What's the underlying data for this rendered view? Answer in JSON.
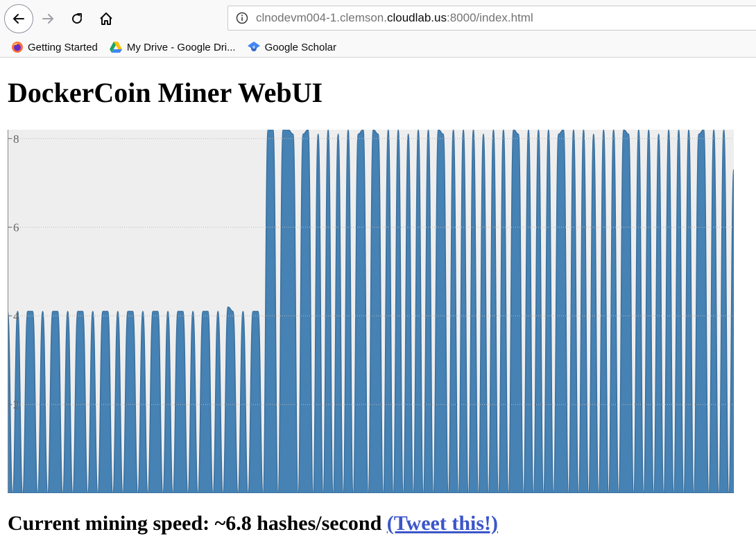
{
  "browser": {
    "url_prefix": "clnodevm004-1.clemson.",
    "url_domain": "cloudlab.us",
    "url_suffix": ":8000/index.html",
    "bookmarks": [
      {
        "label": "Getting Started",
        "icon": "firefox-icon"
      },
      {
        "label": "My Drive - Google Dri...",
        "icon": "google-drive-icon"
      },
      {
        "label": "Google Scholar",
        "icon": "google-scholar-icon"
      }
    ]
  },
  "page": {
    "title": "DockerCoin Miner WebUI",
    "speed_text": "Current mining speed: ~6.8 hashes/second",
    "tweet_link": "(Tweet this!)"
  },
  "chart_data": {
    "type": "area",
    "title": "",
    "xlabel": "",
    "ylabel": "",
    "y_ticks": [
      "2",
      "4",
      "6",
      "8"
    ],
    "ylim": [
      0,
      8.2
    ],
    "grid": true,
    "colors": {
      "fill": "#4682b4",
      "background": "#eeeeee",
      "grid": "#bbbbbb"
    },
    "series": [
      {
        "x": [
          0,
          1,
          2,
          3,
          4,
          5,
          6,
          7,
          8,
          9,
          10,
          11,
          12,
          13,
          14,
          15,
          16,
          17,
          18,
          19,
          20,
          21,
          22,
          23,
          24,
          25,
          26,
          27,
          28,
          29,
          30,
          31,
          32,
          33,
          34,
          35,
          36,
          37,
          38,
          39,
          40,
          41,
          42,
          43,
          44,
          45,
          46,
          47,
          48,
          49,
          50,
          51,
          52,
          53,
          54,
          55,
          56,
          57,
          58,
          59,
          60,
          61,
          62,
          63,
          64,
          65,
          66,
          67,
          68,
          69,
          70,
          71,
          72,
          73,
          74,
          75,
          76,
          77,
          78,
          79,
          80,
          81,
          82,
          83,
          84,
          85,
          86,
          87,
          88,
          89,
          90,
          91,
          92,
          93,
          94,
          95,
          96,
          97,
          98,
          99,
          100,
          101,
          102,
          103,
          104,
          105,
          106,
          107,
          108,
          109,
          110,
          111,
          112,
          113,
          114,
          115,
          116,
          117,
          118,
          119,
          120,
          121,
          122,
          123,
          124,
          125,
          126,
          127,
          128,
          129,
          130,
          131,
          132,
          133,
          134,
          135,
          136,
          137,
          138,
          139,
          140,
          141,
          142,
          143,
          144,
          145
        ],
        "y": [
          4.1,
          0,
          4.1,
          0,
          4.1,
          4.1,
          0,
          4.1,
          0,
          4.1,
          4.1,
          0,
          4.1,
          0,
          4.1,
          4.1,
          0,
          4.1,
          0,
          4.1,
          4.1,
          0,
          4.1,
          0,
          4.1,
          4.1,
          0,
          4.1,
          0,
          4.1,
          4.1,
          0,
          4.1,
          0,
          4.1,
          4.1,
          0,
          4.1,
          0,
          4.1,
          4.1,
          0,
          4.1,
          0,
          4.2,
          4.1,
          0,
          4.1,
          0,
          4.1,
          4.1,
          0,
          8.2,
          8.2,
          0,
          8.2,
          8.2,
          8.1,
          0,
          8.1,
          8.2,
          0,
          8.1,
          0,
          8.2,
          0,
          8.1,
          0,
          8.2,
          0,
          8.1,
          8.2,
          0,
          8.2,
          8.1,
          0,
          8.2,
          0,
          8.2,
          0,
          8.1,
          0,
          8.2,
          0,
          8.2,
          0,
          8.2,
          8.1,
          0,
          8.2,
          0,
          8.2,
          0,
          8.2,
          0,
          8.1,
          0,
          8.2,
          0,
          8.2,
          0,
          8.2,
          8.1,
          0,
          8.2,
          0,
          8.2,
          0,
          8.2,
          0,
          8.1,
          8.2,
          0,
          8.2,
          0,
          8.2,
          0,
          8.1,
          0,
          8.2,
          0,
          8.2,
          0,
          8.2,
          8.1,
          0,
          8.2,
          0,
          8.2,
          0,
          8.1,
          0,
          8.2,
          0,
          8.2,
          0,
          8.2,
          0,
          8.1,
          8.2,
          0,
          8.2,
          0,
          8.2,
          0,
          7.3
        ]
      }
    ]
  }
}
